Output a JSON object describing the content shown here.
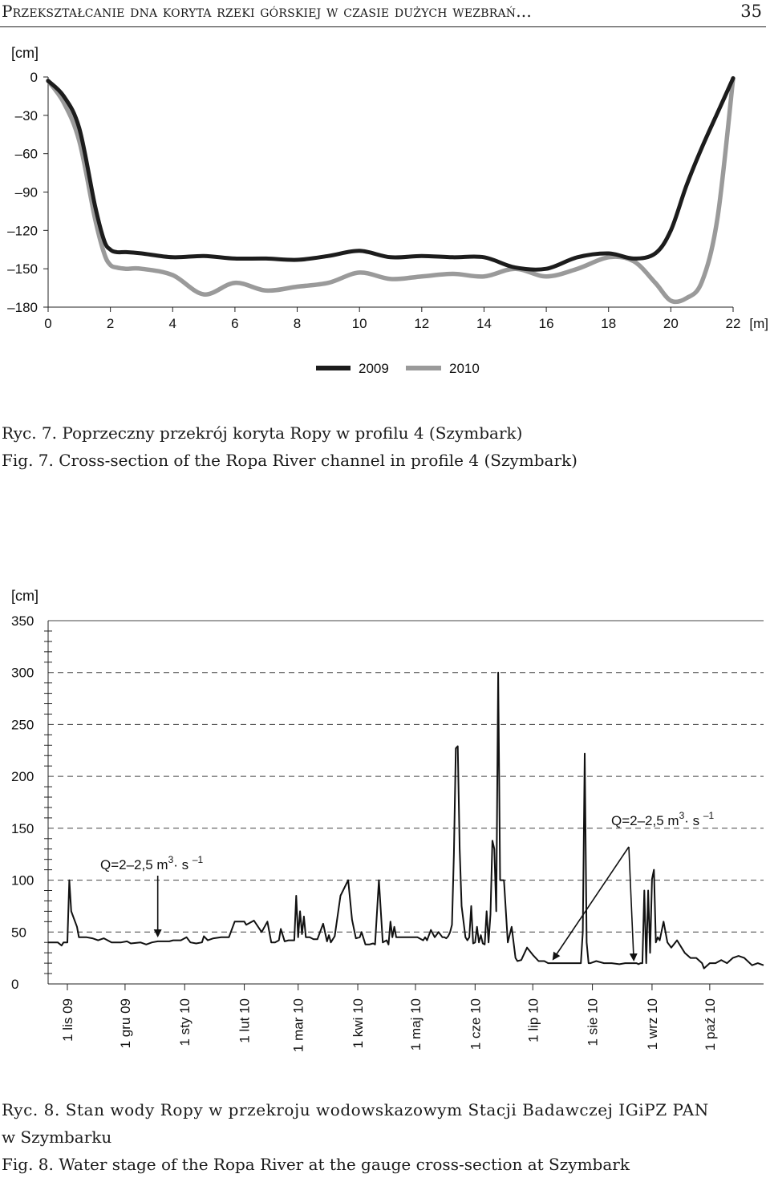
{
  "header": {
    "running_head": "Przekształcanie dna koryta rzeki górskiej w czasie dużych wezbrań...",
    "page_number": "35"
  },
  "figure7": {
    "caption_pl": "Ryc. 7. Poprzeczny przekrój koryta Ropy w profilu 4 (Szymbark)",
    "caption_en": "Fig. 7. Cross-section of the Ropa River channel in profile 4 (Szymbark)"
  },
  "figure8": {
    "caption_pl_line1": "Ryc. 8. Stan wody Ropy w przekroju wodowskazowym Stacji Badawczej IGiPZ PAN",
    "caption_pl_line2": "w Szymbarku",
    "caption_en": "Fig. 8. Water stage of the Ropa River at the gauge cross-section at Szymbark"
  },
  "chart_data": [
    {
      "type": "line",
      "ylabel": "[cm]",
      "xlabel": "[m]",
      "xlim": [
        0,
        22
      ],
      "ylim": [
        -180,
        0
      ],
      "x_ticks": [
        "0",
        "2",
        "4",
        "6",
        "8",
        "10",
        "12",
        "14",
        "16",
        "18",
        "20",
        "22"
      ],
      "y_ticks": [
        "0",
        "–30",
        "–60",
        "–90",
        "–120",
        "–150",
        "–180"
      ],
      "y_tick_values": [
        0,
        -30,
        -60,
        -90,
        -120,
        -150,
        -180
      ],
      "grid": false,
      "legend_position": "bottom-center",
      "series": [
        {
          "name": "2009",
          "color": "#1c1c1c",
          "x": [
            0,
            0.5,
            1,
            1.5,
            1.8,
            2,
            2.2,
            2.5,
            3,
            4,
            5,
            6,
            7,
            8,
            9,
            10,
            11,
            12,
            13,
            14,
            15,
            16,
            17,
            18,
            18.8,
            19.5,
            20,
            20.5,
            21,
            21.5,
            22
          ],
          "y": [
            -3,
            -15,
            -40,
            -100,
            -128,
            -135,
            -137,
            -137,
            -138,
            -141,
            -140,
            -142,
            -142,
            -143,
            -140,
            -136,
            -141,
            -140,
            -141,
            -141,
            -149,
            -150,
            -141,
            -138,
            -142,
            -138,
            -120,
            -85,
            -55,
            -28,
            -1
          ]
        },
        {
          "name": "2010",
          "color": "#9a9a9a",
          "x": [
            0,
            0.5,
            1,
            1.5,
            1.8,
            2,
            2.2,
            2.5,
            3,
            4,
            5,
            6,
            7,
            8,
            9,
            10,
            11,
            12,
            13,
            14,
            15,
            16,
            17,
            18,
            18.8,
            19.5,
            20,
            20.5,
            21,
            21.5,
            22
          ],
          "y": [
            -3,
            -20,
            -50,
            -110,
            -138,
            -147,
            -149,
            -150,
            -150,
            -155,
            -170,
            -161,
            -167,
            -164,
            -161,
            -153,
            -158,
            -156,
            -154,
            -156,
            -150,
            -156,
            -150,
            -141,
            -144,
            -161,
            -175,
            -173,
            -160,
            -110,
            -1
          ]
        }
      ]
    },
    {
      "type": "line",
      "ylabel": "[cm]",
      "ylim": [
        0,
        350
      ],
      "y_ticks": [
        "0",
        "50",
        "100",
        "150",
        "200",
        "250",
        "300",
        "350"
      ],
      "y_tick_values": [
        0,
        50,
        100,
        150,
        200,
        250,
        300,
        350
      ],
      "x_ticks": [
        "1 lis 09",
        "1 gru 09",
        "1 sty 10",
        "1 lut 10",
        "1 mar 10",
        "1 kwi 10",
        "1 maj 10",
        "1 cze 10",
        "1 lip 10",
        "1 sie 10",
        "1 wrz 10",
        "1 paź 10"
      ],
      "x_tick_days": [
        0,
        30,
        61,
        92,
        120,
        151,
        181,
        212,
        242,
        273,
        304,
        334
      ],
      "x_range_days": [
        -10,
        362
      ],
      "grid": "dashed at 150, 200, 250, 300, 350",
      "annotations": [
        {
          "text": "Q=2–2,5 m",
          "sup": "3",
          "text2": "· s",
          "sup2": "–1",
          "arrows_to_days": [
            47
          ]
        },
        {
          "text": "Q=2–2,5 m",
          "sup": "3",
          "text2": "· s",
          "sup2": "–1",
          "arrows_to_days": [
            251,
            292
          ]
        }
      ],
      "series": [
        {
          "color": "#111111",
          "x": [
            -10,
            -5,
            -3,
            -2,
            0,
            1,
            2,
            3,
            5,
            6,
            10,
            13,
            16,
            19,
            23,
            28,
            31,
            33,
            38,
            41,
            44,
            47,
            49,
            51,
            53,
            55,
            59,
            62,
            64,
            67,
            70,
            71,
            73,
            76,
            80,
            84,
            87,
            90,
            92,
            93,
            97,
            101,
            104,
            106,
            108,
            110,
            111,
            113,
            115,
            118,
            119,
            120,
            121,
            122,
            123,
            124,
            125,
            126,
            128,
            130,
            133,
            135,
            136,
            137,
            139,
            142,
            146,
            148,
            150,
            152,
            153,
            155,
            157,
            159,
            160,
            162,
            164,
            166,
            167,
            168,
            169,
            170,
            171,
            173,
            176,
            179,
            182,
            185,
            186,
            187,
            189,
            191,
            193,
            195,
            196,
            197,
            198,
            199,
            200,
            201,
            202,
            203,
            204,
            205,
            206,
            207,
            208,
            209,
            210,
            211,
            212,
            213,
            214,
            215,
            216,
            217,
            218,
            219,
            220,
            221,
            222,
            223,
            224,
            225,
            227,
            229,
            231,
            233,
            234,
            236,
            239,
            242,
            245,
            248,
            250,
            254,
            258,
            262,
            264,
            265,
            266,
            267,
            268,
            269,
            270,
            271,
            272,
            275,
            279,
            283,
            287,
            290,
            292,
            294,
            296,
            297,
            298,
            299,
            300,
            301,
            302,
            303,
            304,
            305,
            306,
            307,
            308,
            310,
            312,
            314,
            317,
            321,
            324,
            327,
            330,
            331,
            334,
            337,
            340,
            343,
            346,
            349,
            352,
            356,
            359,
            362
          ],
          "y": [
            40,
            40,
            37,
            40,
            40,
            100,
            70,
            65,
            55,
            45,
            45,
            44,
            42,
            44,
            40,
            40,
            41,
            39,
            40,
            38,
            40,
            41,
            41,
            41,
            41,
            42,
            42,
            45,
            40,
            39,
            40,
            46,
            42,
            44,
            45,
            45,
            60,
            60,
            60,
            57,
            61,
            50,
            60,
            40,
            40,
            42,
            53,
            41,
            42,
            42,
            85,
            45,
            70,
            48,
            65,
            45,
            45,
            45,
            43,
            43,
            58,
            41,
            47,
            40,
            46,
            85,
            100,
            62,
            44,
            45,
            50,
            38,
            38,
            39,
            38,
            100,
            40,
            42,
            38,
            60,
            45,
            55,
            45,
            45,
            45,
            45,
            45,
            42,
            45,
            42,
            52,
            45,
            50,
            45,
            45,
            44,
            46,
            50,
            57,
            125,
            227,
            229,
            130,
            75,
            60,
            45,
            42,
            45,
            75,
            39,
            40,
            55,
            40,
            47,
            39,
            38,
            70,
            40,
            67,
            138,
            130,
            70,
            300,
            100,
            100,
            40,
            55,
            25,
            22,
            23,
            35,
            28,
            22,
            22,
            20,
            20,
            20,
            20,
            20,
            20,
            20,
            20,
            50,
            222,
            40,
            20,
            20,
            22,
            20,
            20,
            19,
            20,
            20,
            20,
            20,
            19,
            20,
            20,
            90,
            20,
            90,
            30,
            101,
            110,
            40,
            45,
            42,
            60,
            40,
            35,
            42,
            30,
            25,
            25,
            20,
            15,
            20,
            20,
            23,
            20,
            25,
            27,
            25,
            18,
            20,
            18
          ],
          "peaks_note": "",
          "extra_peaks": []
        }
      ]
    }
  ]
}
